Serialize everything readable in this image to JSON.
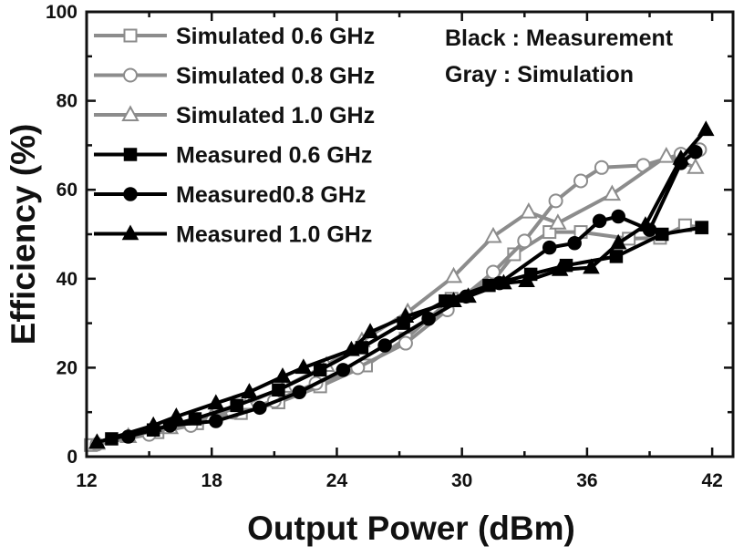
{
  "chart_data": {
    "type": "line",
    "title": "",
    "xlabel": "Output Power (dBm)",
    "ylabel": "Efficiency (%)",
    "xlim": [
      12,
      43
    ],
    "ylim": [
      0,
      100
    ],
    "xticks": [
      "12",
      "18",
      "24",
      "30",
      "36",
      "42"
    ],
    "yticks": [
      "0",
      "20",
      "40",
      "60",
      "80",
      "100"
    ],
    "legend_position": "top-left",
    "annotations": [
      "Black : Measurement",
      "Gray : Simulation"
    ],
    "colors": {
      "measured": "#000000",
      "simulated": "#8c8c8c"
    },
    "series": [
      {
        "name": "Simulated 0.6 GHz",
        "color": "#8c8c8c",
        "marker": "square-open",
        "points": [
          [
            12.2,
            2.6
          ],
          [
            15.4,
            5.5
          ],
          [
            17.3,
            7.5
          ],
          [
            19.4,
            9.8
          ],
          [
            21.2,
            12.2
          ],
          [
            23.2,
            15.8
          ],
          [
            25.4,
            20.5
          ],
          [
            27.3,
            26.5
          ],
          [
            29.5,
            35.5
          ],
          [
            31.5,
            39.5
          ],
          [
            32.5,
            45.5
          ],
          [
            34.2,
            50.5
          ],
          [
            35.7,
            50.5
          ],
          [
            38.0,
            49.0
          ],
          [
            39.5,
            49.2
          ],
          [
            40.7,
            52.0
          ],
          [
            41.5,
            51.5
          ]
        ]
      },
      {
        "name": "Simulated 0.8 GHz",
        "color": "#8c8c8c",
        "marker": "circle-open",
        "points": [
          [
            12.5,
            2.8
          ],
          [
            15.0,
            5.0
          ],
          [
            17.0,
            7.0
          ],
          [
            19.0,
            10.0
          ],
          [
            21.0,
            12.5
          ],
          [
            23.0,
            16.5
          ],
          [
            25.0,
            20.0
          ],
          [
            27.3,
            25.5
          ],
          [
            29.3,
            33.0
          ],
          [
            31.5,
            41.5
          ],
          [
            33.0,
            48.5
          ],
          [
            34.5,
            57.5
          ],
          [
            35.7,
            62.0
          ],
          [
            36.7,
            65.0
          ],
          [
            38.7,
            65.5
          ],
          [
            40.5,
            68.0
          ],
          [
            41.4,
            69.0
          ]
        ]
      },
      {
        "name": "Simulated 1.0 GHz",
        "color": "#8c8c8c",
        "marker": "triangle-open",
        "points": [
          [
            12.5,
            3.0
          ],
          [
            14.0,
            4.5
          ],
          [
            16.0,
            6.5
          ],
          [
            18.0,
            9.0
          ],
          [
            19.7,
            12.0
          ],
          [
            21.5,
            15.8
          ],
          [
            23.5,
            20.5
          ],
          [
            25.2,
            26.0
          ],
          [
            27.4,
            32.5
          ],
          [
            29.6,
            40.5
          ],
          [
            31.5,
            49.5
          ],
          [
            33.2,
            55.0
          ],
          [
            34.6,
            52.5
          ],
          [
            37.2,
            59.0
          ],
          [
            39.8,
            67.5
          ],
          [
            41.2,
            65.0
          ]
        ]
      },
      {
        "name": "Measured 0.6 GHz",
        "color": "#000000",
        "marker": "square",
        "points": [
          [
            13.2,
            4.0
          ],
          [
            15.2,
            6.0
          ],
          [
            17.2,
            8.5
          ],
          [
            19.2,
            11.5
          ],
          [
            21.2,
            15.0
          ],
          [
            23.2,
            19.5
          ],
          [
            25.2,
            24.5
          ],
          [
            27.2,
            30.0
          ],
          [
            29.2,
            35.0
          ],
          [
            31.3,
            38.5
          ],
          [
            33.3,
            41.0
          ],
          [
            35.0,
            43.0
          ],
          [
            37.4,
            45.0
          ],
          [
            39.6,
            50.0
          ],
          [
            41.5,
            51.5
          ]
        ]
      },
      {
        "name": "Measured0.8 GHz",
        "color": "#000000",
        "marker": "circle",
        "points": [
          [
            14.0,
            4.5
          ],
          [
            16.0,
            7.0
          ],
          [
            18.2,
            8.0
          ],
          [
            20.3,
            11.0
          ],
          [
            22.2,
            14.5
          ],
          [
            24.3,
            19.5
          ],
          [
            26.3,
            25.0
          ],
          [
            28.4,
            31.0
          ],
          [
            30.2,
            36.0
          ],
          [
            31.8,
            39.0
          ],
          [
            34.2,
            47.0
          ],
          [
            35.4,
            48.0
          ],
          [
            36.6,
            53.0
          ],
          [
            37.5,
            54.0
          ],
          [
            39.0,
            51.0
          ],
          [
            40.5,
            66.0
          ],
          [
            41.2,
            68.5
          ]
        ]
      },
      {
        "name": "Measured 1.0 GHz",
        "color": "#000000",
        "marker": "triangle",
        "points": [
          [
            12.5,
            3.2
          ],
          [
            15.2,
            7.0
          ],
          [
            16.3,
            9.0
          ],
          [
            18.2,
            12.0
          ],
          [
            19.8,
            14.5
          ],
          [
            21.4,
            18.0
          ],
          [
            22.4,
            20.0
          ],
          [
            24.7,
            24.0
          ],
          [
            25.6,
            28.0
          ],
          [
            27.3,
            31.5
          ],
          [
            29.6,
            35.0
          ],
          [
            30.3,
            36.0
          ],
          [
            32.0,
            39.0
          ],
          [
            33.1,
            39.5
          ],
          [
            34.7,
            42.0
          ],
          [
            36.2,
            42.5
          ],
          [
            37.5,
            48.0
          ],
          [
            38.8,
            52.0
          ],
          [
            40.5,
            67.0
          ],
          [
            41.7,
            73.5
          ]
        ]
      }
    ]
  }
}
